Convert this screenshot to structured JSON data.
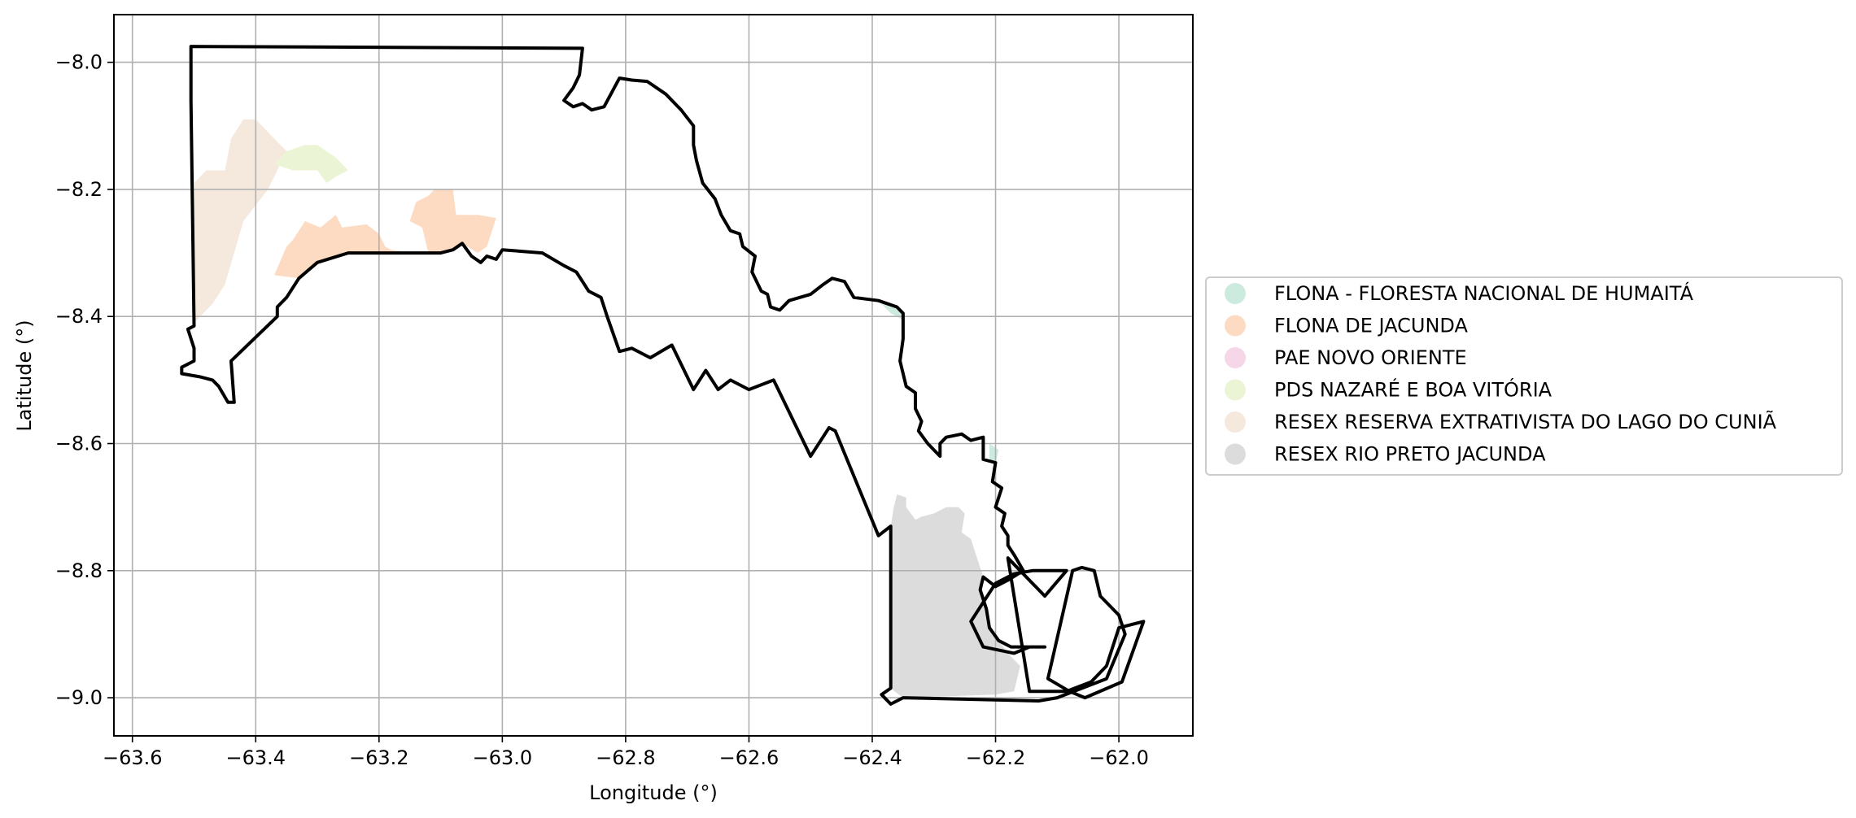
{
  "chart_data": {
    "type": "map",
    "xlabel": "Longitude (°)",
    "ylabel": "Latitude (°)",
    "xlim": [
      -63.63,
      -61.88
    ],
    "ylim": [
      -9.06,
      -7.925
    ],
    "xticks": [
      -63.6,
      -63.4,
      -63.2,
      -63.0,
      -62.8,
      -62.6,
      -62.4,
      -62.2,
      -62.0
    ],
    "xtick_labels": [
      "−63.6",
      "−63.4",
      "−63.2",
      "−63.0",
      "−62.8",
      "−62.6",
      "−62.4",
      "−62.2",
      "−62.0"
    ],
    "yticks": [
      -8.0,
      -8.2,
      -8.4,
      -8.6,
      -8.8,
      -9.0
    ],
    "ytick_labels": [
      "−8.0",
      "−8.2",
      "−8.4",
      "−8.6",
      "−8.8",
      "−9.0"
    ],
    "grid": true,
    "legend_position": "right",
    "legend": [
      {
        "label": "FLONA - FLORESTA NACIONAL DE HUMAITÁ",
        "color": "#cdeadf"
      },
      {
        "label": "FLONA DE JACUNDA",
        "color": "#fddbc2"
      },
      {
        "label": "PAE NOVO ORIENTE",
        "color": "#f5d7e8"
      },
      {
        "label": "PDS NAZARÉ E BOA VITÓRIA",
        "color": "#ebf5d6"
      },
      {
        "label": "RESEX RESERVA EXTRATIVISTA DO LAGO DO CUNIÃ",
        "color": "#f4e9dc"
      },
      {
        "label": "RESEX RIO PRETO JACUNDA",
        "color": "#dcdcdc"
      }
    ],
    "boundary": [
      [
        -63.505,
        -7.975
      ],
      [
        -62.87,
        -7.978
      ],
      [
        -62.875,
        -8.02
      ],
      [
        -62.885,
        -8.04
      ],
      [
        -62.9,
        -8.06
      ],
      [
        -62.885,
        -8.07
      ],
      [
        -62.87,
        -8.065
      ],
      [
        -62.855,
        -8.075
      ],
      [
        -62.835,
        -8.07
      ],
      [
        -62.81,
        -8.025
      ],
      [
        -62.79,
        -8.028
      ],
      [
        -62.765,
        -8.03
      ],
      [
        -62.735,
        -8.05
      ],
      [
        -62.71,
        -8.075
      ],
      [
        -62.69,
        -8.1
      ],
      [
        -62.69,
        -8.13
      ],
      [
        -62.685,
        -8.155
      ],
      [
        -62.675,
        -8.19
      ],
      [
        -62.655,
        -8.215
      ],
      [
        -62.645,
        -8.24
      ],
      [
        -62.63,
        -8.265
      ],
      [
        -62.615,
        -8.27
      ],
      [
        -62.61,
        -8.29
      ],
      [
        -62.59,
        -8.305
      ],
      [
        -62.595,
        -8.33
      ],
      [
        -62.58,
        -8.36
      ],
      [
        -62.57,
        -8.365
      ],
      [
        -62.565,
        -8.385
      ],
      [
        -62.55,
        -8.39
      ],
      [
        -62.535,
        -8.375
      ],
      [
        -62.5,
        -8.365
      ],
      [
        -62.48,
        -8.35
      ],
      [
        -62.465,
        -8.34
      ],
      [
        -62.445,
        -8.345
      ],
      [
        -62.43,
        -8.37
      ],
      [
        -62.39,
        -8.375
      ],
      [
        -62.36,
        -8.385
      ],
      [
        -62.35,
        -8.395
      ],
      [
        -62.35,
        -8.435
      ],
      [
        -62.355,
        -8.47
      ],
      [
        -62.345,
        -8.51
      ],
      [
        -62.33,
        -8.52
      ],
      [
        -62.33,
        -8.545
      ],
      [
        -62.32,
        -8.565
      ],
      [
        -62.325,
        -8.58
      ],
      [
        -62.31,
        -8.6
      ],
      [
        -62.29,
        -8.62
      ],
      [
        -62.29,
        -8.6
      ],
      [
        -62.28,
        -8.59
      ],
      [
        -62.255,
        -8.585
      ],
      [
        -62.24,
        -8.595
      ],
      [
        -62.22,
        -8.59
      ],
      [
        -62.22,
        -8.625
      ],
      [
        -62.2,
        -8.63
      ],
      [
        -62.205,
        -8.66
      ],
      [
        -62.19,
        -8.67
      ],
      [
        -62.2,
        -8.7
      ],
      [
        -62.185,
        -8.71
      ],
      [
        -62.19,
        -8.73
      ],
      [
        -62.18,
        -8.745
      ],
      [
        -62.18,
        -8.76
      ],
      [
        -62.17,
        -8.775
      ],
      [
        -62.155,
        -8.8
      ],
      [
        -62.18,
        -8.815
      ],
      [
        -62.2,
        -8.825
      ],
      [
        -62.22,
        -8.81
      ],
      [
        -62.225,
        -8.83
      ],
      [
        -62.215,
        -8.86
      ],
      [
        -62.21,
        -8.89
      ],
      [
        -62.195,
        -8.91
      ],
      [
        -62.175,
        -8.92
      ],
      [
        -62.12,
        -8.92
      ],
      [
        -62.145,
        -8.92
      ],
      [
        -62.17,
        -8.93
      ],
      [
        -62.22,
        -8.92
      ],
      [
        -62.24,
        -8.88
      ],
      [
        -62.2,
        -8.82
      ],
      [
        -62.17,
        -8.805
      ],
      [
        -62.14,
        -8.8
      ],
      [
        -62.085,
        -8.8
      ],
      [
        -62.12,
        -8.84
      ],
      [
        -62.16,
        -8.8
      ],
      [
        -62.18,
        -8.78
      ],
      [
        -62.145,
        -8.99
      ],
      [
        -62.085,
        -8.99
      ],
      [
        -62.045,
        -8.975
      ],
      [
        -62.02,
        -8.95
      ],
      [
        -62.0,
        -8.89
      ],
      [
        -61.96,
        -8.88
      ],
      [
        -61.995,
        -8.975
      ],
      [
        -62.055,
        -9.0
      ],
      [
        -62.08,
        -8.99
      ],
      [
        -62.115,
        -8.97
      ],
      [
        -62.075,
        -8.8
      ],
      [
        -62.06,
        -8.795
      ],
      [
        -62.04,
        -8.8
      ],
      [
        -62.03,
        -8.84
      ],
      [
        -62.0,
        -8.87
      ],
      [
        -61.99,
        -8.9
      ],
      [
        -62.02,
        -8.97
      ],
      [
        -62.1,
        -9.0
      ],
      [
        -62.13,
        -9.005
      ],
      [
        -62.35,
        -9.0
      ],
      [
        -62.37,
        -9.01
      ],
      [
        -62.385,
        -8.995
      ],
      [
        -62.37,
        -8.985
      ],
      [
        -62.37,
        -8.73
      ],
      [
        -62.39,
        -8.745
      ],
      [
        -62.46,
        -8.58
      ],
      [
        -62.47,
        -8.575
      ],
      [
        -62.5,
        -8.62
      ],
      [
        -62.56,
        -8.5
      ],
      [
        -62.6,
        -8.515
      ],
      [
        -62.63,
        -8.5
      ],
      [
        -62.65,
        -8.515
      ],
      [
        -62.67,
        -8.485
      ],
      [
        -62.69,
        -8.515
      ],
      [
        -62.725,
        -8.445
      ],
      [
        -62.76,
        -8.465
      ],
      [
        -62.79,
        -8.45
      ],
      [
        -62.81,
        -8.455
      ],
      [
        -62.83,
        -8.4
      ],
      [
        -62.84,
        -8.37
      ],
      [
        -62.86,
        -8.36
      ],
      [
        -62.87,
        -8.345
      ],
      [
        -62.88,
        -8.33
      ],
      [
        -62.9,
        -8.32
      ],
      [
        -62.935,
        -8.3
      ],
      [
        -63.0,
        -8.295
      ],
      [
        -63.01,
        -8.31
      ],
      [
        -63.025,
        -8.305
      ],
      [
        -63.035,
        -8.315
      ],
      [
        -63.05,
        -8.305
      ],
      [
        -63.065,
        -8.285
      ],
      [
        -63.08,
        -8.295
      ],
      [
        -63.1,
        -8.3
      ],
      [
        -63.25,
        -8.3
      ],
      [
        -63.3,
        -8.315
      ],
      [
        -63.33,
        -8.34
      ],
      [
        -63.35,
        -8.37
      ],
      [
        -63.365,
        -8.385
      ],
      [
        -63.365,
        -8.4
      ],
      [
        -63.44,
        -8.47
      ],
      [
        -63.435,
        -8.535
      ],
      [
        -63.445,
        -8.535
      ],
      [
        -63.46,
        -8.51
      ],
      [
        -63.47,
        -8.5
      ],
      [
        -63.49,
        -8.495
      ],
      [
        -63.52,
        -8.49
      ],
      [
        -63.52,
        -8.48
      ],
      [
        -63.5,
        -8.47
      ],
      [
        -63.5,
        -8.45
      ],
      [
        -63.51,
        -8.42
      ],
      [
        -63.5,
        -8.415
      ],
      [
        -63.505,
        -8.06
      ],
      [
        -63.505,
        -7.975
      ]
    ],
    "areas": [
      {
        "name": "RESEX RESERVA EXTRATIVISTA DO LAGO DO CUNIÃ",
        "color": "#f4e9dc",
        "coords": [
          [
            -63.5,
            -8.19
          ],
          [
            -63.48,
            -8.17
          ],
          [
            -63.45,
            -8.17
          ],
          [
            -63.44,
            -8.12
          ],
          [
            -63.42,
            -8.09
          ],
          [
            -63.4,
            -8.09
          ],
          [
            -63.37,
            -8.12
          ],
          [
            -63.35,
            -8.14
          ],
          [
            -63.38,
            -8.2
          ],
          [
            -63.42,
            -8.25
          ],
          [
            -63.45,
            -8.35
          ],
          [
            -63.47,
            -8.38
          ],
          [
            -63.5,
            -8.41
          ]
        ]
      },
      {
        "name": "PDS NAZARÉ E BOA VITÓRIA",
        "color": "#ebf5d6",
        "coords": [
          [
            -63.37,
            -8.16
          ],
          [
            -63.35,
            -8.14
          ],
          [
            -63.32,
            -8.13
          ],
          [
            -63.3,
            -8.13
          ],
          [
            -63.27,
            -8.15
          ],
          [
            -63.25,
            -8.17
          ],
          [
            -63.27,
            -8.18
          ],
          [
            -63.285,
            -8.19
          ],
          [
            -63.3,
            -8.17
          ],
          [
            -63.34,
            -8.17
          ]
        ]
      },
      {
        "name": "FLONA DE JACUNDA",
        "color": "#fddbc2",
        "coords": [
          [
            -63.37,
            -8.335
          ],
          [
            -63.35,
            -8.29
          ],
          [
            -63.34,
            -8.28
          ],
          [
            -63.32,
            -8.25
          ],
          [
            -63.295,
            -8.26
          ],
          [
            -63.27,
            -8.24
          ],
          [
            -63.26,
            -8.26
          ],
          [
            -63.22,
            -8.255
          ],
          [
            -63.2,
            -8.27
          ],
          [
            -63.19,
            -8.29
          ],
          [
            -63.18,
            -8.295
          ],
          [
            -63.15,
            -8.3
          ],
          [
            -63.25,
            -8.3
          ],
          [
            -63.3,
            -8.315
          ],
          [
            -63.33,
            -8.34
          ]
        ]
      },
      {
        "name": "FLONA DE JACUNDA",
        "color": "#fddbc2",
        "coords": [
          [
            -63.14,
            -8.22
          ],
          [
            -63.12,
            -8.21
          ],
          [
            -63.11,
            -8.2
          ],
          [
            -63.08,
            -8.2
          ],
          [
            -63.075,
            -8.24
          ],
          [
            -63.04,
            -8.24
          ],
          [
            -63.01,
            -8.245
          ],
          [
            -63.025,
            -8.29
          ],
          [
            -63.04,
            -8.3
          ],
          [
            -63.065,
            -8.285
          ],
          [
            -63.08,
            -8.295
          ],
          [
            -63.1,
            -8.3
          ],
          [
            -63.12,
            -8.3
          ],
          [
            -63.13,
            -8.26
          ],
          [
            -63.15,
            -8.25
          ]
        ]
      },
      {
        "name": "RESEX RIO PRETO JACUNDA",
        "color": "#dcdcdc",
        "coords": [
          [
            -62.36,
            -8.68
          ],
          [
            -62.345,
            -8.685
          ],
          [
            -62.345,
            -8.7
          ],
          [
            -62.33,
            -8.72
          ],
          [
            -62.32,
            -8.715
          ],
          [
            -62.3,
            -8.71
          ],
          [
            -62.28,
            -8.7
          ],
          [
            -62.26,
            -8.7
          ],
          [
            -62.25,
            -8.71
          ],
          [
            -62.255,
            -8.74
          ],
          [
            -62.24,
            -8.75
          ],
          [
            -62.23,
            -8.78
          ],
          [
            -62.22,
            -8.81
          ],
          [
            -62.225,
            -8.83
          ],
          [
            -62.215,
            -8.86
          ],
          [
            -62.21,
            -8.89
          ],
          [
            -62.195,
            -8.91
          ],
          [
            -62.18,
            -8.93
          ],
          [
            -62.16,
            -8.95
          ],
          [
            -62.17,
            -8.99
          ],
          [
            -62.2,
            -8.995
          ],
          [
            -62.35,
            -9.0
          ],
          [
            -62.37,
            -8.985
          ],
          [
            -62.37,
            -8.73
          ],
          [
            -62.365,
            -8.7
          ]
        ]
      },
      {
        "name": "FLONA - FLORESTA NACIONAL DE HUMAITÁ",
        "color": "#cdeadf",
        "coords": [
          [
            -62.39,
            -8.375
          ],
          [
            -62.37,
            -8.38
          ],
          [
            -62.355,
            -8.39
          ],
          [
            -62.35,
            -8.405
          ],
          [
            -62.37,
            -8.395
          ]
        ]
      },
      {
        "name": "FLONA - FLORESTA NACIONAL DE HUMAITÁ",
        "color": "#cdeadf",
        "coords": [
          [
            -62.2,
            -8.63
          ],
          [
            -62.195,
            -8.61
          ],
          [
            -62.21,
            -8.6
          ],
          [
            -62.21,
            -8.63
          ]
        ]
      }
    ]
  }
}
